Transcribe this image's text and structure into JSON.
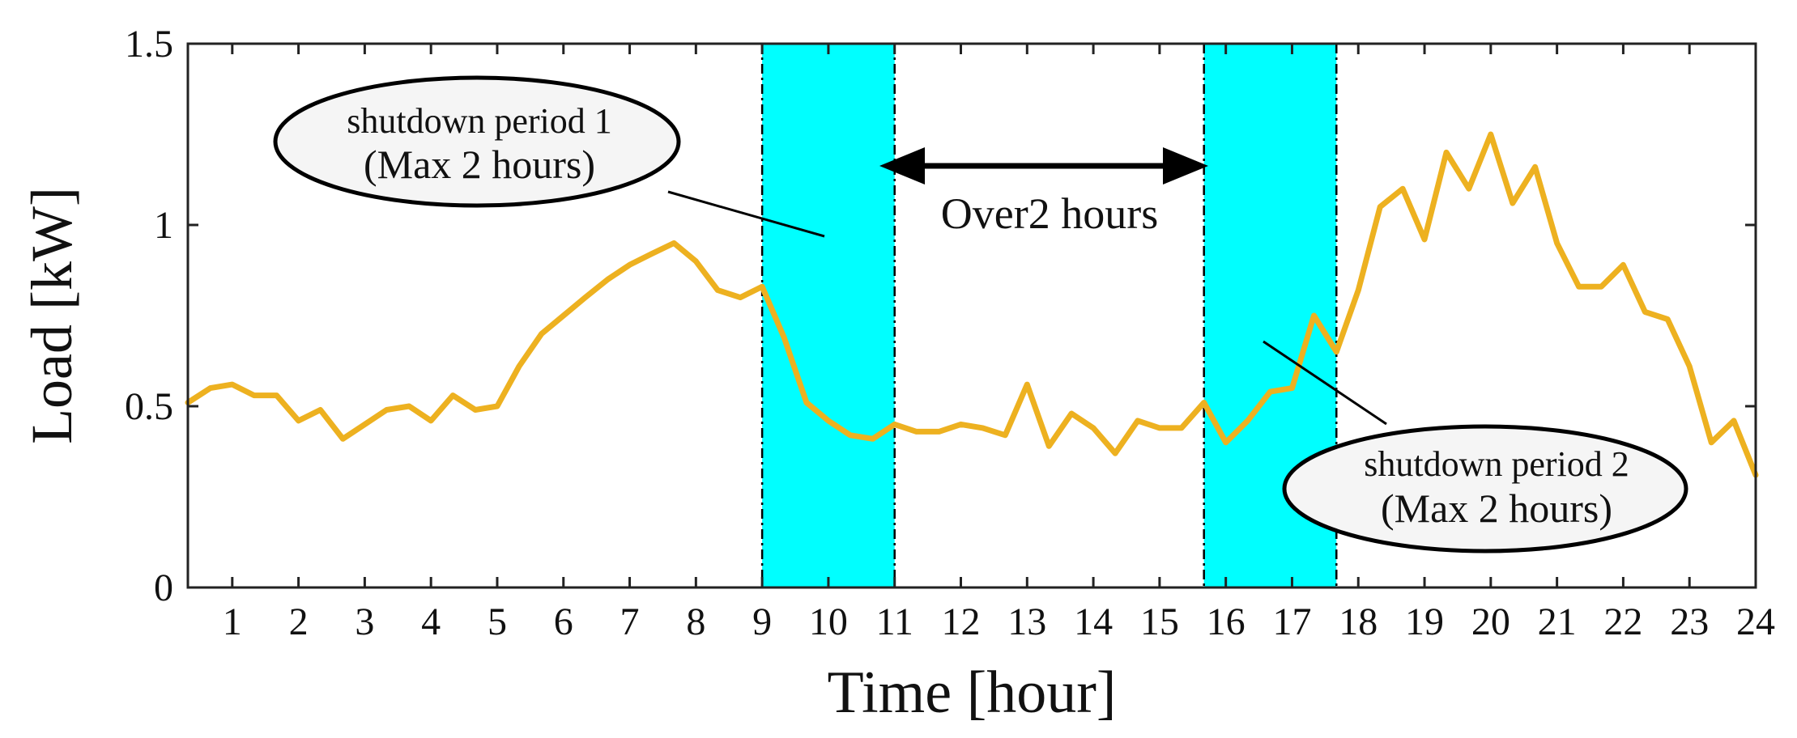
{
  "chart_data": {
    "type": "line",
    "title": "",
    "xlabel": "Time [hour]",
    "ylabel": "Load [kW]",
    "xlim": [
      0.33,
      24
    ],
    "ylim": [
      0,
      1.5
    ],
    "x_ticks": [
      1,
      2,
      3,
      4,
      5,
      6,
      7,
      8,
      9,
      10,
      11,
      12,
      13,
      14,
      15,
      16,
      17,
      18,
      19,
      20,
      21,
      22,
      23,
      24
    ],
    "y_ticks": [
      0,
      0.5,
      1,
      1.5
    ],
    "y_tick_labels": [
      "0",
      "0.5",
      "1",
      "1.5"
    ],
    "x_tick_labels": [
      "1",
      "2",
      "3",
      "4",
      "5",
      "6",
      "7",
      "8",
      "9",
      "10",
      "11",
      "12",
      "13",
      "14",
      "15",
      "16",
      "17",
      "18",
      "19",
      "20",
      "21",
      "22",
      "23",
      "24"
    ],
    "grid": false,
    "line_color": "#EDB120",
    "series": [
      {
        "name": "",
        "x": [
          0.33,
          0.67,
          1.0,
          1.33,
          1.67,
          2.0,
          2.33,
          2.67,
          3.0,
          3.33,
          3.67,
          4.0,
          4.33,
          4.67,
          5.0,
          5.33,
          5.67,
          6.0,
          6.33,
          6.67,
          7.0,
          7.33,
          7.67,
          8.0,
          8.33,
          8.67,
          9.0,
          9.33,
          9.67,
          10.0,
          10.33,
          10.67,
          11.0,
          11.33,
          11.67,
          12.0,
          12.33,
          12.67,
          13.0,
          13.33,
          13.67,
          14.0,
          14.33,
          14.67,
          15.0,
          15.33,
          15.67,
          16.0,
          16.33,
          16.67,
          17.0,
          17.33,
          17.67,
          18.0,
          18.33,
          18.67,
          19.0,
          19.33,
          19.67,
          20.0,
          20.33,
          20.67,
          21.0,
          21.33,
          21.67,
          22.0,
          22.33,
          22.67,
          23.0,
          23.33,
          23.67,
          24.0
        ],
        "y": [
          0.51,
          0.55,
          0.56,
          0.53,
          0.53,
          0.46,
          0.49,
          0.41,
          0.45,
          0.49,
          0.5,
          0.46,
          0.53,
          0.49,
          0.5,
          0.61,
          0.7,
          0.75,
          0.8,
          0.85,
          0.89,
          0.92,
          0.95,
          0.9,
          0.82,
          0.8,
          0.83,
          0.69,
          0.51,
          0.46,
          0.42,
          0.41,
          0.45,
          0.43,
          0.43,
          0.45,
          0.44,
          0.42,
          0.56,
          0.39,
          0.48,
          0.44,
          0.37,
          0.46,
          0.44,
          0.44,
          0.51,
          0.4,
          0.46,
          0.54,
          0.55,
          0.75,
          0.65,
          0.82,
          1.05,
          1.1,
          0.96,
          1.2,
          1.1,
          1.25,
          1.06,
          1.16,
          0.95,
          0.83,
          0.83,
          0.89,
          0.76,
          0.74,
          0.61,
          0.4,
          0.46,
          0.31
        ]
      }
    ],
    "shaded_regions": [
      {
        "x0": 9.0,
        "x1": 11.0,
        "color": "#00FFFF"
      },
      {
        "x0": 15.67,
        "x1": 17.67,
        "color": "#00FFFF"
      }
    ],
    "annotations": {
      "period1_line1": "shutdown period 1",
      "period1_line2": "(Max 2 hours)",
      "period2_line1": "shutdown period 2",
      "period2_line2": "(Max 2 hours)",
      "gap_label": "Over2 hours"
    }
  }
}
